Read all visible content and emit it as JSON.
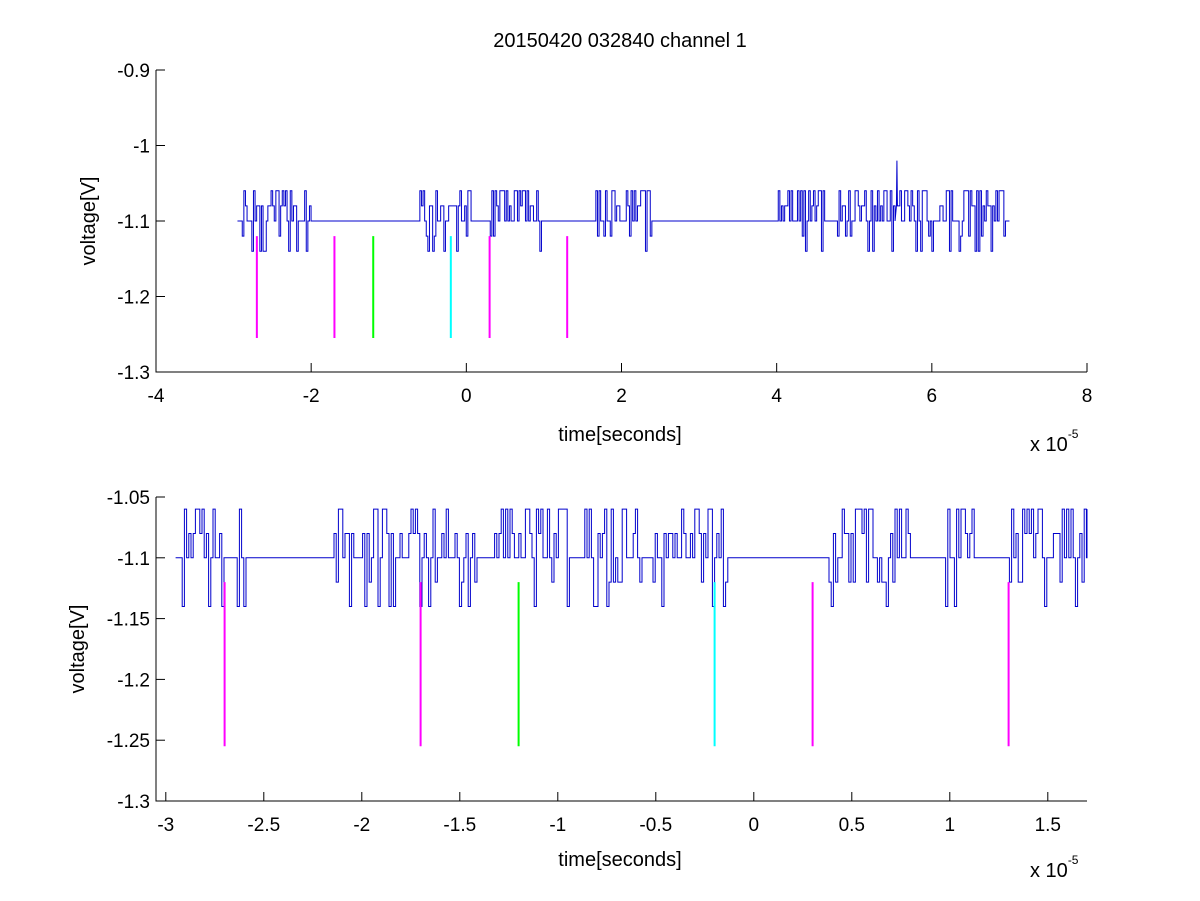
{
  "figure": {
    "title": "20150420 032840 channel 1"
  },
  "chart_data": [
    {
      "type": "line",
      "xlabel": "time[seconds]",
      "ylabel": "voltage[V]",
      "xlim": [
        -4,
        8
      ],
      "ylim": [
        -1.3,
        -0.9
      ],
      "x_scale_note": "x 10",
      "x_scale_exponent": "-5",
      "xticks": [
        -4,
        -2,
        0,
        2,
        4,
        6,
        8
      ],
      "xtick_labels": [
        "-4",
        "-2",
        "0",
        "2",
        "4",
        "6",
        "8"
      ],
      "yticks": [
        -1.3,
        -1.2,
        -1.1,
        -1,
        -0.9
      ],
      "ytick_labels": [
        "-1.3",
        "-1.2",
        "-1.1",
        "-1",
        "-0.9"
      ],
      "series": [
        {
          "color": "#0000cc",
          "x_range": [
            -2.95,
            7.0
          ],
          "baseline": -1.1,
          "levels": [
            -1.14,
            -1.12,
            -1.1,
            -1.08,
            -1.06
          ],
          "spike": {
            "x": 5.55,
            "y": -1.02
          }
        }
      ],
      "markers": [
        {
          "x": -2.7,
          "y0": -1.12,
          "y1": -1.255,
          "color": "#ff00ff"
        },
        {
          "x": -1.7,
          "y0": -1.12,
          "y1": -1.255,
          "color": "#ff00ff"
        },
        {
          "x": -1.2,
          "y0": -1.12,
          "y1": -1.255,
          "color": "#00ff00"
        },
        {
          "x": -0.2,
          "y0": -1.12,
          "y1": -1.255,
          "color": "#00ffff"
        },
        {
          "x": 0.3,
          "y0": -1.12,
          "y1": -1.255,
          "color": "#ff00ff"
        },
        {
          "x": 1.3,
          "y0": -1.12,
          "y1": -1.255,
          "color": "#ff00ff"
        }
      ]
    },
    {
      "type": "line",
      "xlabel": "time[seconds]",
      "ylabel": "voltage[V]",
      "xlim": [
        -3.05,
        1.7
      ],
      "ylim": [
        -1.3,
        -1.05
      ],
      "x_scale_note": "x 10",
      "x_scale_exponent": "-5",
      "xticks": [
        -3,
        -2.5,
        -2,
        -1.5,
        -1,
        -0.5,
        0,
        0.5,
        1,
        1.5
      ],
      "xtick_labels": [
        "-3",
        "-2.5",
        "-2",
        "-1.5",
        "-1",
        "-0.5",
        "0",
        "0.5",
        "1",
        "1.5"
      ],
      "yticks": [
        -1.3,
        -1.25,
        -1.2,
        -1.15,
        -1.1,
        -1.05
      ],
      "ytick_labels": [
        "-1.3",
        "-1.25",
        "-1.2",
        "-1.15",
        "-1.1",
        "-1.05"
      ],
      "series": [
        {
          "color": "#0000cc",
          "x_range": [
            -2.95,
            1.7
          ],
          "baseline": -1.1,
          "levels": [
            -1.14,
            -1.12,
            -1.1,
            -1.08,
            -1.06
          ]
        }
      ],
      "markers": [
        {
          "x": -2.7,
          "y0": -1.12,
          "y1": -1.255,
          "color": "#ff00ff"
        },
        {
          "x": -1.7,
          "y0": -1.12,
          "y1": -1.255,
          "color": "#ff00ff"
        },
        {
          "x": -1.2,
          "y0": -1.12,
          "y1": -1.255,
          "color": "#00ff00"
        },
        {
          "x": -0.2,
          "y0": -1.12,
          "y1": -1.255,
          "color": "#00ffff"
        },
        {
          "x": 0.3,
          "y0": -1.12,
          "y1": -1.255,
          "color": "#ff00ff"
        },
        {
          "x": 1.3,
          "y0": -1.12,
          "y1": -1.255,
          "color": "#ff00ff"
        }
      ]
    }
  ]
}
